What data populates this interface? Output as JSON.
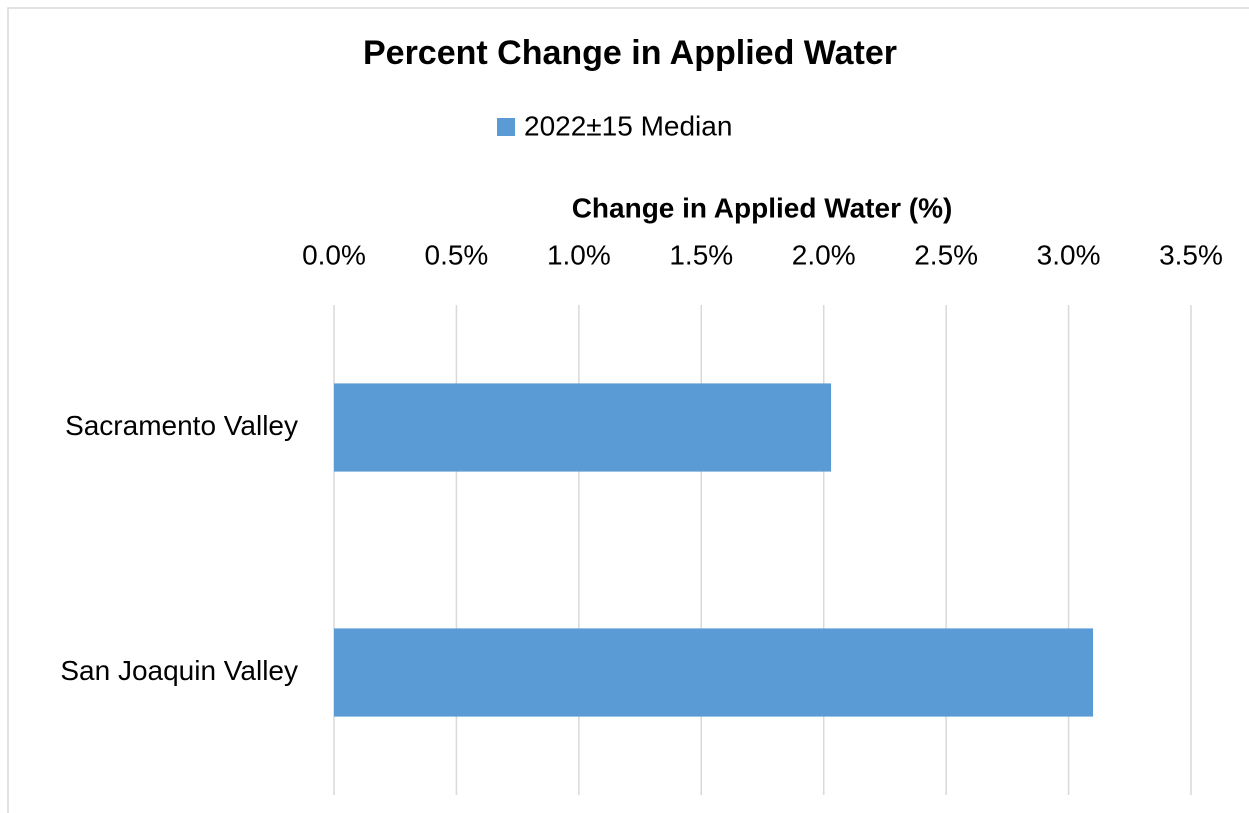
{
  "chart_data": {
    "type": "bar",
    "orientation": "horizontal",
    "title": "Percent Change in Applied Water",
    "x_label": "Change in Applied Water (%)",
    "categories": [
      "Sacramento Valley",
      "San Joaquin Valley"
    ],
    "series": [
      {
        "name": "2022±15 Median",
        "color": "#5b9bd5",
        "values": [
          2.03,
          3.1
        ]
      }
    ],
    "xlim": [
      0,
      3.5
    ],
    "xticks": [
      {
        "value": 0,
        "label": "0.0%"
      },
      {
        "value": 0.5,
        "label": "0.5%"
      },
      {
        "value": 1,
        "label": "1.0%"
      },
      {
        "value": 1.5,
        "label": "1.5%"
      },
      {
        "value": 2,
        "label": "2.0%"
      },
      {
        "value": 2.5,
        "label": "2.5%"
      },
      {
        "value": 3,
        "label": "3.0%"
      },
      {
        "value": 3.5,
        "label": "3.5%"
      }
    ],
    "grid": true,
    "legend": "top"
  }
}
